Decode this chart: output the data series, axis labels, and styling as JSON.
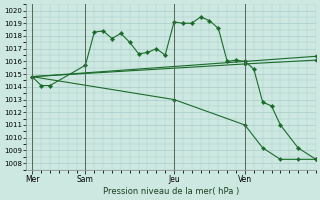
{
  "xlabel": "Pression niveau de la mer( hPa )",
  "bg_color": "#cce8e0",
  "grid_color": "#aacccc",
  "line_color": "#1a6b2a",
  "ylim": [
    1007.5,
    1020.5
  ],
  "yticks": [
    1008,
    1009,
    1010,
    1011,
    1012,
    1013,
    1014,
    1015,
    1016,
    1017,
    1018,
    1019,
    1020
  ],
  "day_labels": [
    "Mer",
    "Sam",
    "Jeu",
    "Ven"
  ],
  "day_positions": [
    0,
    18,
    48,
    72
  ],
  "vline_positions": [
    0,
    18,
    48,
    72
  ],
  "xlim": [
    -2,
    96
  ],
  "series": [
    {
      "x": [
        0,
        3,
        6,
        18,
        21,
        24,
        27,
        30,
        33,
        36,
        39,
        42,
        45,
        48,
        51,
        54,
        57,
        60,
        63,
        66,
        69,
        72,
        75,
        78,
        81,
        84,
        90,
        96
      ],
      "y": [
        1014.8,
        1014.1,
        1014.1,
        1015.7,
        1018.3,
        1018.4,
        1017.8,
        1018.2,
        1017.5,
        1016.6,
        1016.7,
        1017.0,
        1016.5,
        1019.1,
        1019.0,
        1019.0,
        1019.5,
        1019.2,
        1018.6,
        1016.0,
        1016.1,
        1016.0,
        1015.4,
        1012.8,
        1012.5,
        1011.0,
        1009.2,
        1008.3
      ]
    },
    {
      "x": [
        0,
        72,
        96
      ],
      "y": [
        1014.8,
        1016.0,
        1016.4
      ]
    },
    {
      "x": [
        0,
        72,
        96
      ],
      "y": [
        1014.8,
        1015.8,
        1016.1
      ]
    },
    {
      "x": [
        0,
        48,
        72,
        78,
        84,
        90,
        96
      ],
      "y": [
        1014.8,
        1013.0,
        1011.0,
        1009.2,
        1008.3,
        1008.3,
        1008.3
      ]
    }
  ]
}
